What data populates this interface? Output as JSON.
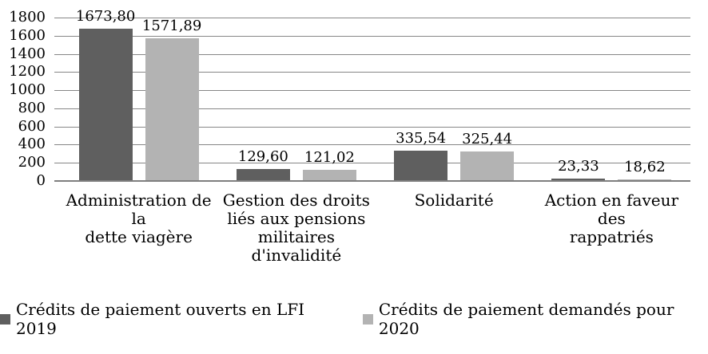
{
  "chart_data": {
    "type": "bar",
    "title": "",
    "xlabel": "",
    "ylabel": "",
    "categories": [
      "Administration de la\ndette viagère",
      "Gestion des droits\nliés aux pensions\nmilitaires\nd'invalidité",
      "Solidarité",
      "Action en faveur des\nrappatriés"
    ],
    "series": [
      {
        "name": "Crédits de paiement ouverts en LFI 2019",
        "color": "#5F5F5F",
        "values": [
          1673.8,
          129.6,
          335.54,
          23.33
        ],
        "value_labels": [
          "1673,80",
          "129,60",
          "335,54",
          "23,33"
        ]
      },
      {
        "name": "Crédits de paiement demandés pour 2020",
        "color": "#B3B3B3",
        "values": [
          1571.89,
          121.02,
          325.44,
          18.62
        ],
        "value_labels": [
          "1571,89",
          "121,02",
          "325,44",
          "18,62"
        ]
      }
    ],
    "ylim": [
      0,
      1800
    ],
    "ytick_step": 200,
    "ytick_labels": [
      "1800",
      "1600",
      "1400",
      "1200",
      "1000",
      "800",
      "600",
      "400",
      "200",
      "0"
    ],
    "grid": true,
    "grid_color": "#868686",
    "axis_line_color": "#7F7F7F",
    "legend_position": "bottom"
  }
}
